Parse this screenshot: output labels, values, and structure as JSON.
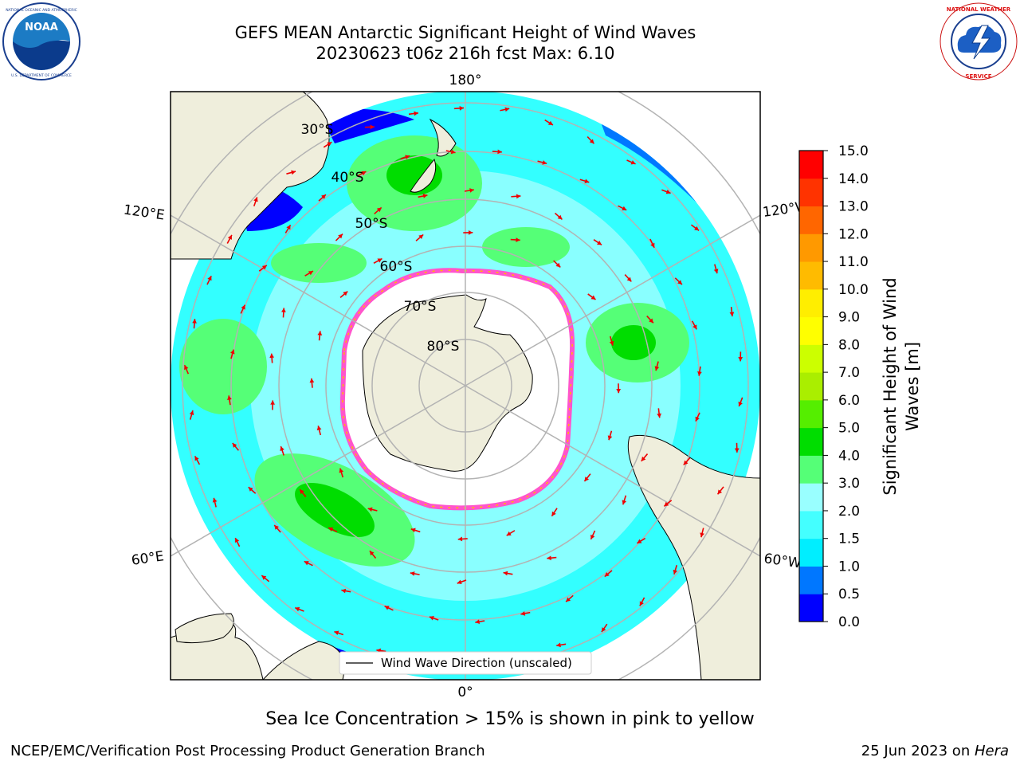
{
  "title": {
    "line1": "GEFS MEAN Antarctic Significant Height of Wind Waves",
    "line2": "20230623 t06z 216h fcst   Max: 6.10"
  },
  "logos": {
    "noaa_text": "NOAA",
    "noaa_ring_text": "NATIONAL OCEANIC AND ATMOSPHERIC ADMINISTRATION · U.S. DEPARTMENT OF COMMERCE",
    "nws_ring_text": "NATIONAL WEATHER SERVICE"
  },
  "map": {
    "lon_labels": {
      "top": "180°",
      "bottom": "0°",
      "upper_left": "120°E",
      "lower_left": "60°E",
      "upper_right": "120°W",
      "lower_right": "60°W"
    },
    "lat_labels": [
      "30°S",
      "40°S",
      "50°S",
      "60°S",
      "70°S",
      "80°S"
    ],
    "legend_label": "Wind Wave Direction (unscaled)",
    "ocean_color": "#33ffff",
    "land_color": "#efeedc",
    "ice_color": "#ffffff",
    "ice_edge_color": "#ff55cc",
    "arrow_color": "#ee0000"
  },
  "colorbar": {
    "label_line1": "Significant Height of Wind",
    "label_line2": "Waves [m]",
    "ticks": [
      "0.0",
      "0.5",
      "1.0",
      "1.5",
      "2.0",
      "3.0",
      "4.0",
      "5.0",
      "6.0",
      "7.0",
      "8.0",
      "9.0",
      "10.0",
      "11.0",
      "12.0",
      "13.0",
      "14.0",
      "15.0"
    ],
    "colors": [
      "#0000ff",
      "#0077ff",
      "#00eeff",
      "#44ffff",
      "#99ffff",
      "#55ff77",
      "#00dd00",
      "#55ee00",
      "#aaee00",
      "#ccff00",
      "#ffff00",
      "#ffee00",
      "#ffbb00",
      "#ff9900",
      "#ff6600",
      "#ff3300",
      "#ff0000"
    ]
  },
  "caption": "Sea Ice Concentration > 15% is shown in pink to yellow",
  "footer": {
    "left": "NCEP/EMC/Verification Post Processing Product Generation Branch",
    "right_prefix": "25 Jun 2023 on ",
    "right_italic": "Hera"
  }
}
